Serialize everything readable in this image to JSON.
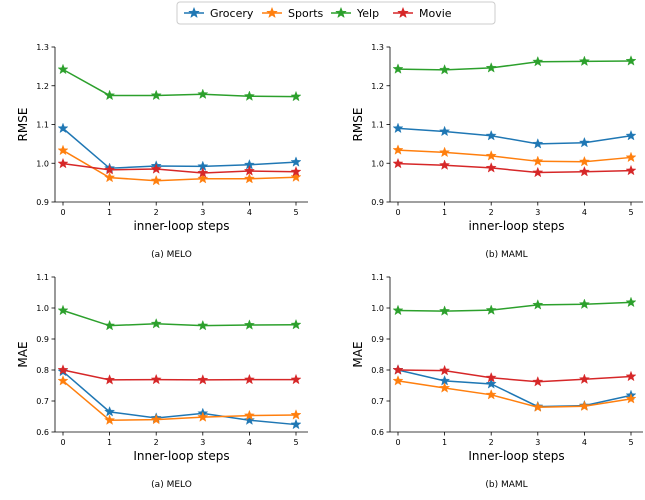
{
  "legend": {
    "position": "top-center",
    "entries": [
      {
        "name": "Grocery",
        "color": "#1f77b4"
      },
      {
        "name": "Sports",
        "color": "#ff7f0e"
      },
      {
        "name": "Yelp",
        "color": "#2ca02c"
      },
      {
        "name": "Movie",
        "color": "#d62728"
      }
    ]
  },
  "chart_data": [
    {
      "type": "line",
      "caption": "(a) MELO",
      "xlabel": "inner-loop steps",
      "ylabel": "RMSE",
      "x": [
        0,
        1,
        2,
        3,
        4,
        5
      ],
      "xticks": [
        "0",
        "1",
        "2",
        "3",
        "4",
        "5"
      ],
      "ylim": [
        0.9,
        1.3
      ],
      "yticks": [
        "0.9",
        "1.0",
        "1.1",
        "1.2",
        "1.3"
      ],
      "grid": false,
      "series": [
        {
          "name": "Grocery",
          "color": "#1f77b4",
          "values": [
            1.09,
            0.987,
            0.993,
            0.992,
            0.996,
            1.003
          ]
        },
        {
          "name": "Sports",
          "color": "#ff7f0e",
          "values": [
            1.033,
            0.963,
            0.955,
            0.96,
            0.96,
            0.964
          ]
        },
        {
          "name": "Yelp",
          "color": "#2ca02c",
          "values": [
            1.242,
            1.175,
            1.175,
            1.178,
            1.173,
            1.172
          ]
        },
        {
          "name": "Movie",
          "color": "#d62728",
          "values": [
            0.999,
            0.983,
            0.985,
            0.975,
            0.98,
            0.978
          ]
        }
      ]
    },
    {
      "type": "line",
      "caption": "(b) MAML",
      "xlabel": "inner-loop steps",
      "ylabel": "RMSE",
      "x": [
        0,
        1,
        2,
        3,
        4,
        5
      ],
      "xticks": [
        "0",
        "1",
        "2",
        "3",
        "4",
        "5"
      ],
      "ylim": [
        0.9,
        1.3
      ],
      "yticks": [
        "0.9",
        "1.0",
        "1.1",
        "1.2",
        "1.3"
      ],
      "grid": false,
      "series": [
        {
          "name": "Grocery",
          "color": "#1f77b4",
          "values": [
            1.09,
            1.082,
            1.071,
            1.05,
            1.053,
            1.071
          ]
        },
        {
          "name": "Sports",
          "color": "#ff7f0e",
          "values": [
            1.034,
            1.028,
            1.019,
            1.005,
            1.004,
            1.015
          ]
        },
        {
          "name": "Yelp",
          "color": "#2ca02c",
          "values": [
            1.243,
            1.241,
            1.246,
            1.262,
            1.263,
            1.264
          ]
        },
        {
          "name": "Movie",
          "color": "#d62728",
          "values": [
            0.999,
            0.995,
            0.988,
            0.976,
            0.978,
            0.981
          ]
        }
      ]
    },
    {
      "type": "line",
      "caption": "(a) MELO",
      "xlabel": "Inner-loop steps",
      "ylabel": "MAE",
      "x": [
        0,
        1,
        2,
        3,
        4,
        5
      ],
      "xticks": [
        "0",
        "1",
        "2",
        "3",
        "4",
        "5"
      ],
      "ylim": [
        0.6,
        1.1
      ],
      "yticks": [
        "0.6",
        "0.7",
        "0.8",
        "0.9",
        "1.0",
        "1.1"
      ],
      "grid": false,
      "series": [
        {
          "name": "Grocery",
          "color": "#1f77b4",
          "values": [
            0.795,
            0.665,
            0.645,
            0.66,
            0.638,
            0.624
          ]
        },
        {
          "name": "Sports",
          "color": "#ff7f0e",
          "values": [
            0.765,
            0.638,
            0.64,
            0.648,
            0.653,
            0.655
          ]
        },
        {
          "name": "Yelp",
          "color": "#2ca02c",
          "values": [
            0.992,
            0.943,
            0.949,
            0.943,
            0.945,
            0.946
          ]
        },
        {
          "name": "Movie",
          "color": "#d62728",
          "values": [
            0.8,
            0.768,
            0.769,
            0.768,
            0.769,
            0.769
          ]
        }
      ]
    },
    {
      "type": "line",
      "caption": "(b) MAML",
      "xlabel": "Inner-loop steps",
      "ylabel": "MAE",
      "x": [
        0,
        1,
        2,
        3,
        4,
        5
      ],
      "xticks": [
        "0",
        "1",
        "2",
        "3",
        "4",
        "5"
      ],
      "ylim": [
        0.6,
        1.1
      ],
      "yticks": [
        "0.6",
        "0.7",
        "0.8",
        "0.9",
        "1.0",
        "1.1"
      ],
      "grid": false,
      "series": [
        {
          "name": "Grocery",
          "color": "#1f77b4",
          "values": [
            0.8,
            0.765,
            0.755,
            0.682,
            0.685,
            0.718
          ]
        },
        {
          "name": "Sports",
          "color": "#ff7f0e",
          "values": [
            0.765,
            0.742,
            0.72,
            0.68,
            0.683,
            0.707
          ]
        },
        {
          "name": "Yelp",
          "color": "#2ca02c",
          "values": [
            0.992,
            0.99,
            0.993,
            1.01,
            1.012,
            1.018
          ]
        },
        {
          "name": "Movie",
          "color": "#d62728",
          "values": [
            0.8,
            0.798,
            0.775,
            0.762,
            0.77,
            0.779
          ]
        }
      ]
    }
  ]
}
